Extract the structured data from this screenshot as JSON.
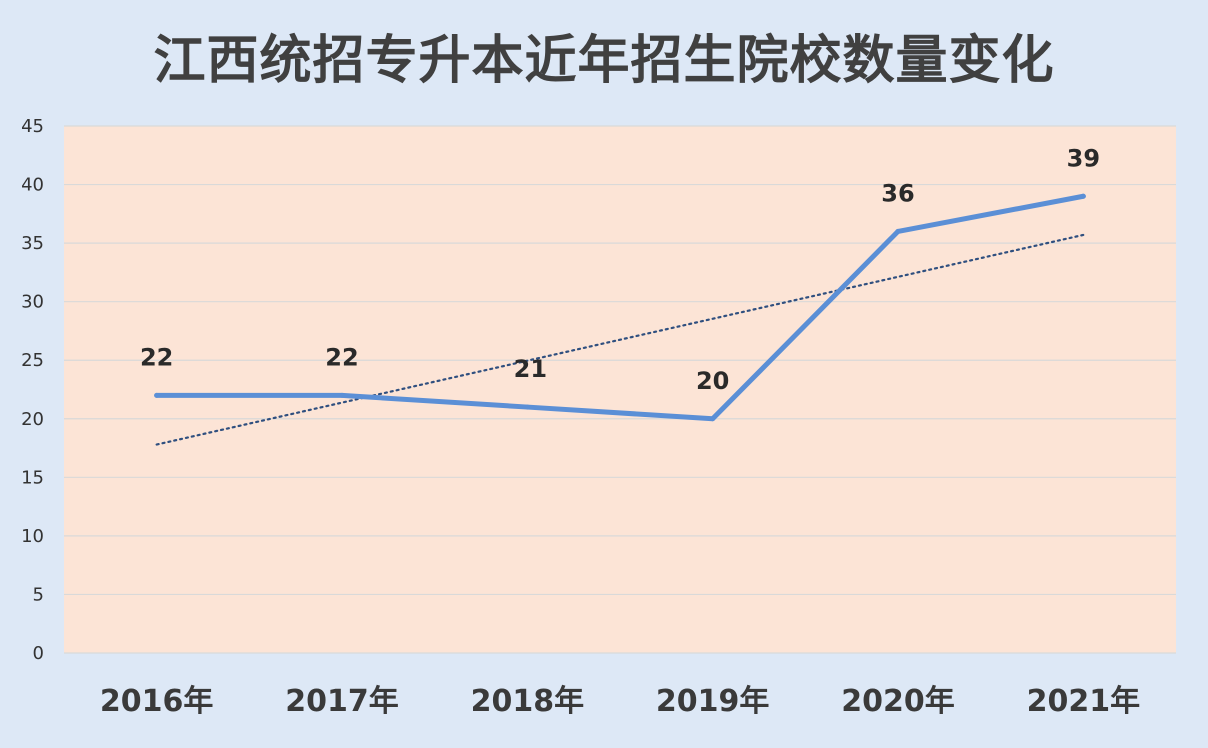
{
  "chart_data": {
    "type": "line",
    "title": "江西统招专升本近年招生院校数量变化",
    "categories": [
      "2016年",
      "2017年",
      "2018年",
      "2019年",
      "2020年",
      "2021年"
    ],
    "series": [
      {
        "values": [
          22,
          22,
          21,
          20,
          36,
          39
        ],
        "color": "#5b8fd6"
      }
    ],
    "trendline": {
      "style": "dotted",
      "color": "#2f4f7f",
      "start": 17.8,
      "end": 35.7
    },
    "ylim": [
      0,
      45
    ],
    "yticks": [
      0,
      5,
      10,
      15,
      20,
      25,
      30,
      35,
      40,
      45
    ],
    "grid": true,
    "data_labels": true,
    "plot_background": "#fce4d6",
    "page_background": "#dde8f6",
    "xlabel": "",
    "ylabel": ""
  }
}
